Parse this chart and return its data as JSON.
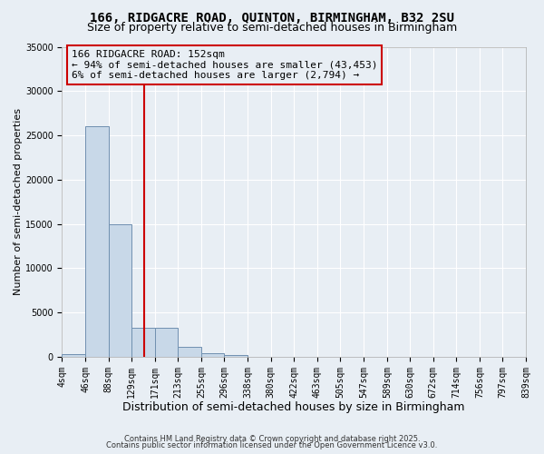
{
  "title1": "166, RIDGACRE ROAD, QUINTON, BIRMINGHAM, B32 2SU",
  "title2": "Size of property relative to semi-detached houses in Birmingham",
  "xlabel": "Distribution of semi-detached houses by size in Birmingham",
  "ylabel": "Number of semi-detached properties",
  "bin_edges": [
    4,
    46,
    88,
    129,
    171,
    213,
    255,
    296,
    338,
    380,
    422,
    463,
    505,
    547,
    589,
    630,
    672,
    714,
    756,
    797,
    839
  ],
  "bar_heights": [
    300,
    26000,
    15000,
    3300,
    3300,
    1100,
    400,
    200,
    0,
    0,
    0,
    0,
    0,
    0,
    0,
    0,
    0,
    0,
    0,
    0
  ],
  "bar_color": "#c8d8e8",
  "bar_edge_color": "#7090b0",
  "property_size": 152,
  "vline_color": "#cc0000",
  "annotation_box_color": "#cc0000",
  "annotation_text1": "166 RIDGACRE ROAD: 152sqm",
  "annotation_text2": "← 94% of semi-detached houses are smaller (43,453)",
  "annotation_text3": "6% of semi-detached houses are larger (2,794) →",
  "ylim": [
    0,
    35000
  ],
  "yticks": [
    0,
    5000,
    10000,
    15000,
    20000,
    25000,
    30000,
    35000
  ],
  "footer1": "Contains HM Land Registry data © Crown copyright and database right 2025.",
  "footer2": "Contains public sector information licensed under the Open Government Licence v3.0.",
  "background_color": "#e8eef4",
  "grid_color": "#ffffff",
  "title1_fontsize": 10,
  "title2_fontsize": 9,
  "annotation_fontsize": 8,
  "tick_fontsize": 7,
  "ylabel_fontsize": 8,
  "xlabel_fontsize": 9
}
